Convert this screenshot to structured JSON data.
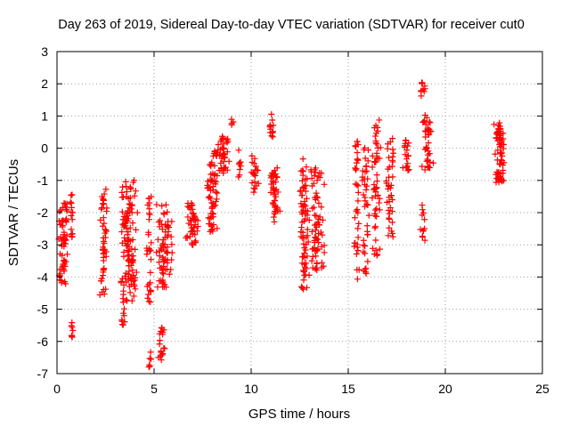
{
  "chart_data": {
    "type": "scatter",
    "title": "Day 263 of 2019, Sidereal Day-to-day VTEC variation (SDTVAR) for receiver cut0",
    "xlabel": "GPS time / hours",
    "ylabel": "SDTVAR / TECUs",
    "xlim": [
      0,
      25
    ],
    "ylim": [
      -7,
      3
    ],
    "xticks": [
      "0",
      "5",
      "10",
      "15",
      "20",
      "25"
    ],
    "yticks": [
      "3",
      "2",
      "1",
      "0",
      "-1",
      "-2",
      "-3",
      "-4",
      "-5",
      "-6",
      "-7"
    ],
    "grid": true,
    "marker": "plus",
    "colors": {
      "series": "#ff0000",
      "grid": "#a0a0a0",
      "axis": "#000000"
    },
    "clusters": [
      {
        "x_range": [
          0.05,
          0.6
        ],
        "y_range": [
          -4.3,
          -1.7
        ],
        "n": 60
      },
      {
        "x_range": [
          0.65,
          0.85
        ],
        "y_range": [
          -2.8,
          -1.4
        ],
        "n": 14
      },
      {
        "x_range": [
          0.7,
          0.85
        ],
        "y_range": [
          -5.9,
          -5.3
        ],
        "n": 7
      },
      {
        "x_range": [
          2.2,
          2.6
        ],
        "y_range": [
          -4.6,
          -1.1
        ],
        "n": 50
      },
      {
        "x_range": [
          3.2,
          4.2
        ],
        "y_range": [
          -4.8,
          -0.9
        ],
        "n": 120
      },
      {
        "x_range": [
          3.3,
          3.5
        ],
        "y_range": [
          -5.5,
          -4.8
        ],
        "n": 8
      },
      {
        "x_range": [
          4.6,
          4.9
        ],
        "y_range": [
          -4.8,
          -1.4
        ],
        "n": 30
      },
      {
        "x_range": [
          4.7,
          4.9
        ],
        "y_range": [
          -6.8,
          -6.3
        ],
        "n": 6
      },
      {
        "x_range": [
          5.1,
          6.0
        ],
        "y_range": [
          -4.4,
          -1.7
        ],
        "n": 70
      },
      {
        "x_range": [
          5.2,
          5.6
        ],
        "y_range": [
          -6.6,
          -5.5
        ],
        "n": 18
      },
      {
        "x_range": [
          6.6,
          7.3
        ],
        "y_range": [
          -3.1,
          -1.7
        ],
        "n": 45
      },
      {
        "x_range": [
          7.7,
          8.3
        ],
        "y_range": [
          -2.6,
          0.0
        ],
        "n": 60
      },
      {
        "x_range": [
          8.2,
          8.9
        ],
        "y_range": [
          -0.8,
          0.4
        ],
        "n": 40
      },
      {
        "x_range": [
          8.9,
          9.1
        ],
        "y_range": [
          0.7,
          0.9
        ],
        "n": 4
      },
      {
        "x_range": [
          9.3,
          9.5
        ],
        "y_range": [
          -0.9,
          0.0
        ],
        "n": 8
      },
      {
        "x_range": [
          10.0,
          10.4
        ],
        "y_range": [
          -1.5,
          -0.2
        ],
        "n": 20
      },
      {
        "x_range": [
          10.9,
          11.2
        ],
        "y_range": [
          0.3,
          1.1
        ],
        "n": 14
      },
      {
        "x_range": [
          10.9,
          11.5
        ],
        "y_range": [
          -2.3,
          -0.6
        ],
        "n": 45
      },
      {
        "x_range": [
          12.5,
          13.0
        ],
        "y_range": [
          -4.4,
          -0.3
        ],
        "n": 70
      },
      {
        "x_range": [
          13.0,
          13.8
        ],
        "y_range": [
          -3.8,
          -0.6
        ],
        "n": 70
      },
      {
        "x_range": [
          15.3,
          15.6
        ],
        "y_range": [
          -4.1,
          0.5
        ],
        "n": 35
      },
      {
        "x_range": [
          15.7,
          16.1
        ],
        "y_range": [
          -4.0,
          0.3
        ],
        "n": 40
      },
      {
        "x_range": [
          16.2,
          16.7
        ],
        "y_range": [
          -3.5,
          0.9
        ],
        "n": 50
      },
      {
        "x_range": [
          16.9,
          17.4
        ],
        "y_range": [
          -2.8,
          0.4
        ],
        "n": 40
      },
      {
        "x_range": [
          17.8,
          18.2
        ],
        "y_range": [
          -0.7,
          0.3
        ],
        "n": 20
      },
      {
        "x_range": [
          18.7,
          19.0
        ],
        "y_range": [
          1.6,
          2.1
        ],
        "n": 10
      },
      {
        "x_range": [
          18.7,
          19.0
        ],
        "y_range": [
          -2.9,
          -1.6
        ],
        "n": 12
      },
      {
        "x_range": [
          18.8,
          19.4
        ],
        "y_range": [
          -0.7,
          1.1
        ],
        "n": 40
      },
      {
        "x_range": [
          22.5,
          23.1
        ],
        "y_range": [
          -1.1,
          0.8
        ],
        "n": 70
      }
    ]
  }
}
